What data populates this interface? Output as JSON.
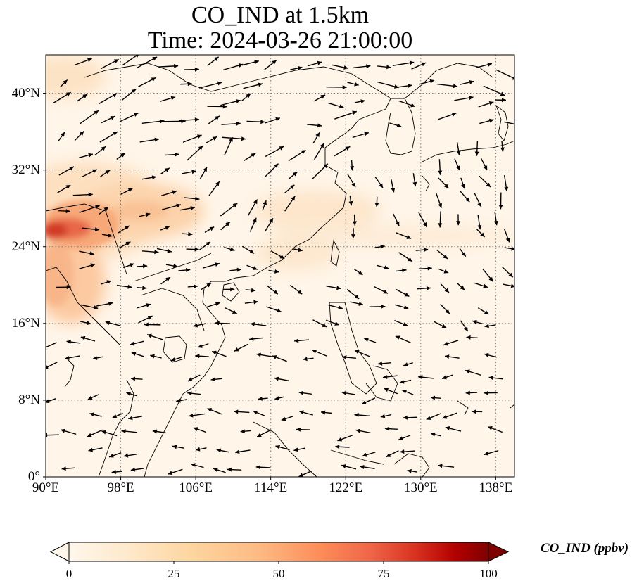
{
  "title_line1": "CO_IND at 1.5km",
  "title_line2": "Time: 2024-03-26 21:00:00",
  "lat_ticks": [
    "0°",
    "8°N",
    "16°N",
    "24°N",
    "32°N",
    "40°N"
  ],
  "lon_ticks": [
    "90°E",
    "98°E",
    "106°E",
    "114°E",
    "122°E",
    "130°E",
    "138°E"
  ],
  "colorbar": {
    "label": "CO_IND (ppbv)",
    "ticks": [
      "0",
      "25",
      "50",
      "75",
      "100"
    ],
    "min": 0,
    "max": 100,
    "extend": "both",
    "colormap": "OrRd"
  },
  "colors": {
    "background_field": "#fff5e8",
    "plume_core": "#d23a26",
    "plume_mid": "#f3a273",
    "coastline": "#000000",
    "gridline": "#777777",
    "wind_arrow": "#000000"
  },
  "map": {
    "projection": "PlateCarree",
    "lon_range": [
      90,
      140
    ],
    "lat_range": [
      0,
      44
    ],
    "grid": "dotted"
  }
}
